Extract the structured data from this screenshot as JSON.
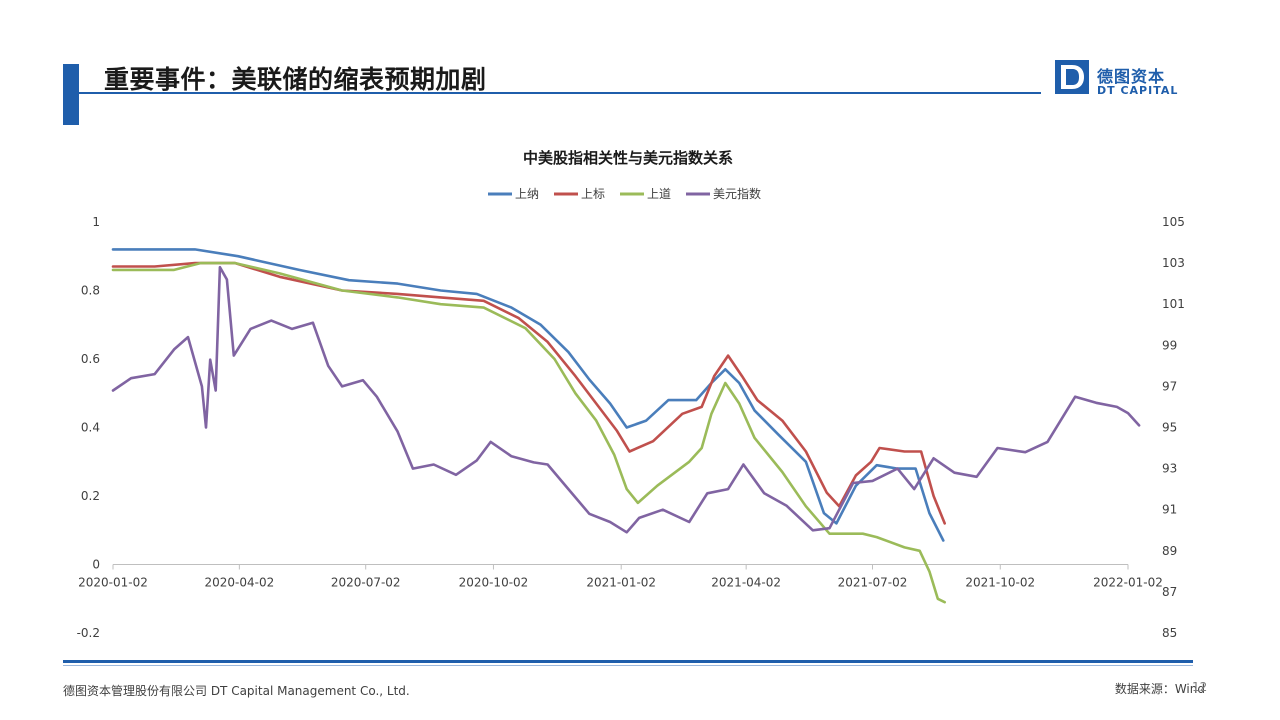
{
  "header": {
    "title": "重要事件：美联储的缩表预期加剧",
    "logo_cn": "德图资本",
    "logo_en": "DT CAPITAL"
  },
  "footer": {
    "company": "德图资本管理股份有限公司  DT Capital  Management  Co., Ltd.",
    "source": "数据来源：Wind",
    "page_number": "12"
  },
  "colors": {
    "brand": "#1f5eab",
    "series_1": "#4a7ebb",
    "series_2": "#c0504d",
    "series_3": "#9bbb59",
    "series_4": "#8064a2"
  },
  "chart_data": {
    "type": "line",
    "title": "中美股指相关性与美元指数关系",
    "legend_position": "top",
    "grid": false,
    "x_ticks": [
      "2020-01-02",
      "2020-04-02",
      "2020-07-02",
      "2020-10-02",
      "2021-01-02",
      "2021-04-02",
      "2021-07-02",
      "2021-10-02",
      "2022-01-02"
    ],
    "xlim": [
      "2020-01-02",
      "2022-01-02"
    ],
    "y_left": {
      "ylim": [
        -0.2,
        1
      ],
      "ticks": [
        "1",
        "0.8",
        "0.6",
        "0.4",
        "0.2",
        "0",
        "-0.2"
      ]
    },
    "y_right": {
      "ylim": [
        85,
        105
      ],
      "ticks": [
        "105",
        "103",
        "101",
        "99",
        "97",
        "95",
        "93",
        "91",
        "89",
        "87",
        "85"
      ]
    },
    "series": [
      {
        "name": "上纳",
        "axis": "left",
        "color": "#4a7ebb",
        "points": [
          [
            "2020-01-02",
            0.92
          ],
          [
            "2020-03-01",
            0.92
          ],
          [
            "2020-04-01",
            0.9
          ],
          [
            "2020-05-15",
            0.86
          ],
          [
            "2020-06-20",
            0.83
          ],
          [
            "2020-07-25",
            0.82
          ],
          [
            "2020-08-25",
            0.8
          ],
          [
            "2020-09-20",
            0.79
          ],
          [
            "2020-10-15",
            0.75
          ],
          [
            "2020-11-05",
            0.7
          ],
          [
            "2020-11-25",
            0.62
          ],
          [
            "2020-12-10",
            0.54
          ],
          [
            "2020-12-25",
            0.47
          ],
          [
            "2021-01-06",
            0.4
          ],
          [
            "2021-01-20",
            0.42
          ],
          [
            "2021-02-05",
            0.48
          ],
          [
            "2021-02-25",
            0.48
          ],
          [
            "2021-03-08",
            0.53
          ],
          [
            "2021-03-18",
            0.57
          ],
          [
            "2021-03-28",
            0.53
          ],
          [
            "2021-04-08",
            0.45
          ],
          [
            "2021-04-25",
            0.38
          ],
          [
            "2021-05-15",
            0.3
          ],
          [
            "2021-05-28",
            0.15
          ],
          [
            "2021-06-06",
            0.12
          ],
          [
            "2021-06-20",
            0.23
          ],
          [
            "2021-07-05",
            0.29
          ],
          [
            "2021-07-20",
            0.28
          ],
          [
            "2021-08-02",
            0.28
          ],
          [
            "2021-08-12",
            0.15
          ],
          [
            "2021-08-22",
            0.07
          ]
        ]
      },
      {
        "name": "上标",
        "axis": "left",
        "color": "#c0504d",
        "points": [
          [
            "2020-01-02",
            0.87
          ],
          [
            "2020-02-01",
            0.87
          ],
          [
            "2020-03-01",
            0.88
          ],
          [
            "2020-03-30",
            0.88
          ],
          [
            "2020-05-01",
            0.84
          ],
          [
            "2020-06-15",
            0.8
          ],
          [
            "2020-07-25",
            0.79
          ],
          [
            "2020-08-25",
            0.78
          ],
          [
            "2020-09-25",
            0.77
          ],
          [
            "2020-10-20",
            0.72
          ],
          [
            "2020-11-10",
            0.65
          ],
          [
            "2020-11-30",
            0.55
          ],
          [
            "2020-12-15",
            0.47
          ],
          [
            "2020-12-30",
            0.39
          ],
          [
            "2021-01-08",
            0.33
          ],
          [
            "2021-01-25",
            0.36
          ],
          [
            "2021-02-15",
            0.44
          ],
          [
            "2021-03-01",
            0.46
          ],
          [
            "2021-03-10",
            0.55
          ],
          [
            "2021-03-20",
            0.61
          ],
          [
            "2021-03-30",
            0.55
          ],
          [
            "2021-04-10",
            0.48
          ],
          [
            "2021-04-28",
            0.42
          ],
          [
            "2021-05-15",
            0.33
          ],
          [
            "2021-05-30",
            0.21
          ],
          [
            "2021-06-08",
            0.17
          ],
          [
            "2021-06-20",
            0.26
          ],
          [
            "2021-07-01",
            0.3
          ],
          [
            "2021-07-07",
            0.34
          ],
          [
            "2021-07-25",
            0.33
          ],
          [
            "2021-08-06",
            0.33
          ],
          [
            "2021-08-15",
            0.2
          ],
          [
            "2021-08-23",
            0.12
          ]
        ]
      },
      {
        "name": "上道",
        "axis": "left",
        "color": "#9bbb59",
        "points": [
          [
            "2020-01-02",
            0.86
          ],
          [
            "2020-02-15",
            0.86
          ],
          [
            "2020-03-05",
            0.88
          ],
          [
            "2020-03-30",
            0.88
          ],
          [
            "2020-05-01",
            0.85
          ],
          [
            "2020-06-15",
            0.8
          ],
          [
            "2020-07-25",
            0.78
          ],
          [
            "2020-08-25",
            0.76
          ],
          [
            "2020-09-25",
            0.75
          ],
          [
            "2020-10-25",
            0.69
          ],
          [
            "2020-11-15",
            0.6
          ],
          [
            "2020-11-30",
            0.5
          ],
          [
            "2020-12-15",
            0.42
          ],
          [
            "2020-12-28",
            0.32
          ],
          [
            "2021-01-06",
            0.22
          ],
          [
            "2021-01-14",
            0.18
          ],
          [
            "2021-01-28",
            0.23
          ],
          [
            "2021-02-20",
            0.3
          ],
          [
            "2021-03-01",
            0.34
          ],
          [
            "2021-03-08",
            0.44
          ],
          [
            "2021-03-18",
            0.53
          ],
          [
            "2021-03-28",
            0.47
          ],
          [
            "2021-04-08",
            0.37
          ],
          [
            "2021-04-28",
            0.27
          ],
          [
            "2021-05-15",
            0.17
          ],
          [
            "2021-06-01",
            0.09
          ],
          [
            "2021-06-25",
            0.09
          ],
          [
            "2021-07-05",
            0.08
          ],
          [
            "2021-07-25",
            0.05
          ],
          [
            "2021-08-05",
            0.04
          ],
          [
            "2021-08-12",
            -0.02
          ],
          [
            "2021-08-18",
            -0.1
          ],
          [
            "2021-08-23",
            -0.11
          ]
        ]
      },
      {
        "name": "美元指数",
        "axis": "right",
        "color": "#8064a2",
        "points": [
          [
            "2020-01-02",
            96.8
          ],
          [
            "2020-01-15",
            97.4
          ],
          [
            "2020-02-01",
            97.6
          ],
          [
            "2020-02-15",
            98.8
          ],
          [
            "2020-02-25",
            99.4
          ],
          [
            "2020-03-06",
            97.0
          ],
          [
            "2020-03-09",
            95.0
          ],
          [
            "2020-03-12",
            98.3
          ],
          [
            "2020-03-16",
            96.8
          ],
          [
            "2020-03-19",
            102.8
          ],
          [
            "2020-03-24",
            102.2
          ],
          [
            "2020-03-29",
            98.5
          ],
          [
            "2020-04-10",
            99.8
          ],
          [
            "2020-04-25",
            100.2
          ],
          [
            "2020-05-10",
            99.8
          ],
          [
            "2020-05-25",
            100.1
          ],
          [
            "2020-06-05",
            98.0
          ],
          [
            "2020-06-15",
            97.0
          ],
          [
            "2020-06-30",
            97.3
          ],
          [
            "2020-07-10",
            96.5
          ],
          [
            "2020-07-25",
            94.8
          ],
          [
            "2020-08-05",
            93.0
          ],
          [
            "2020-08-20",
            93.2
          ],
          [
            "2020-09-05",
            92.7
          ],
          [
            "2020-09-20",
            93.4
          ],
          [
            "2020-09-30",
            94.3
          ],
          [
            "2020-10-15",
            93.6
          ],
          [
            "2020-10-31",
            93.3
          ],
          [
            "2020-11-10",
            93.2
          ],
          [
            "2020-11-25",
            92.0
          ],
          [
            "2020-12-10",
            90.8
          ],
          [
            "2020-12-25",
            90.4
          ],
          [
            "2021-01-06",
            89.9
          ],
          [
            "2021-01-15",
            90.6
          ],
          [
            "2021-02-01",
            91.0
          ],
          [
            "2021-02-20",
            90.4
          ],
          [
            "2021-03-05",
            91.8
          ],
          [
            "2021-03-20",
            92.0
          ],
          [
            "2021-03-31",
            93.2
          ],
          [
            "2021-04-15",
            91.8
          ],
          [
            "2021-05-01",
            91.2
          ],
          [
            "2021-05-20",
            90.0
          ],
          [
            "2021-06-01",
            90.1
          ],
          [
            "2021-06-18",
            92.3
          ],
          [
            "2021-07-02",
            92.4
          ],
          [
            "2021-07-20",
            93.0
          ],
          [
            "2021-08-01",
            92.0
          ],
          [
            "2021-08-15",
            93.5
          ],
          [
            "2021-08-30",
            92.8
          ],
          [
            "2021-09-15",
            92.6
          ],
          [
            "2021-09-30",
            94.0
          ],
          [
            "2021-10-20",
            93.8
          ],
          [
            "2021-11-05",
            94.3
          ],
          [
            "2021-11-25",
            96.5
          ],
          [
            "2021-12-10",
            96.2
          ],
          [
            "2021-12-25",
            96.0
          ],
          [
            "2022-01-02",
            95.7
          ],
          [
            "2022-01-10",
            95.1
          ]
        ]
      }
    ]
  }
}
